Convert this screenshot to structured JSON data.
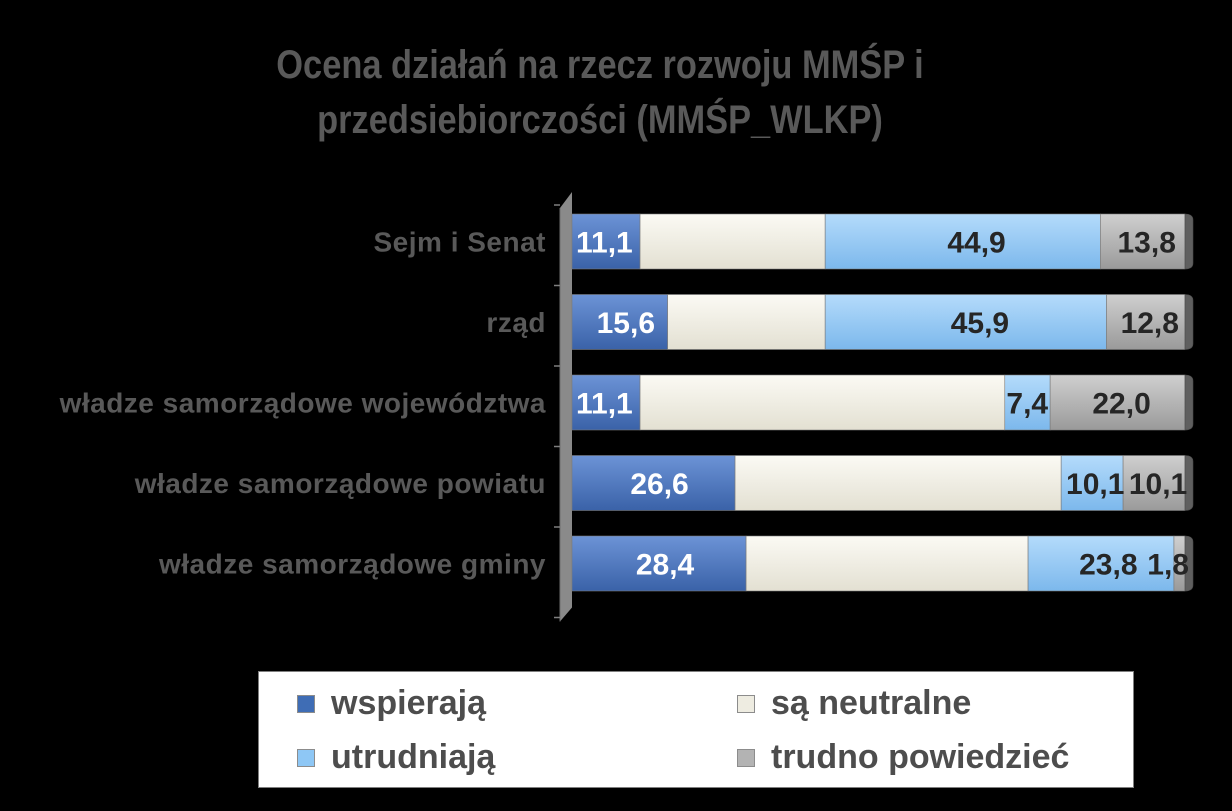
{
  "chart_data": {
    "type": "bar",
    "orientation": "horizontal",
    "stacked": "percent",
    "title": "Ocena działań na rzecz rozwoju MMŚP i przedsiebiorczości (MMŚP_WLKP)",
    "title_lines": [
      "Ocena działań na rzecz rozwoju MMŚP i",
      "przedsiebiorczości (MMŚP_WLKP)"
    ],
    "categories": [
      "Sejm i Senat",
      "rząd",
      "władze samorządowe województwa",
      "władze samorządowe powiatu",
      "władze samorządowe gminy"
    ],
    "series": [
      {
        "name": "wspierają",
        "color": "#4472c4",
        "values": [
          11.1,
          15.6,
          11.1,
          26.6,
          28.4
        ],
        "labels": [
          "11,1",
          "15,6",
          "11,1",
          "26,6",
          "28,4"
        ]
      },
      {
        "name": "są neutralne",
        "color": "#eeece1",
        "values": [
          30.2,
          25.7,
          59.5,
          53.2,
          46.0
        ],
        "labels": [
          "",
          "",
          "",
          "",
          ""
        ]
      },
      {
        "name": "utrudniają",
        "color": "#8ec7f5",
        "values": [
          44.9,
          45.9,
          7.4,
          10.1,
          23.8
        ],
        "labels": [
          "44,9",
          "45,9",
          "7,4",
          "10,1",
          "23,8"
        ]
      },
      {
        "name": "trudno powiedzieć",
        "color": "#b3b3b3",
        "values": [
          13.8,
          12.8,
          22.0,
          10.1,
          1.8
        ],
        "labels": [
          "13,8",
          "12,8",
          "22,0",
          "10,1",
          "1,8"
        ]
      }
    ],
    "xlim": [
      0,
      100
    ],
    "grid": false,
    "legend_position": "bottom"
  }
}
